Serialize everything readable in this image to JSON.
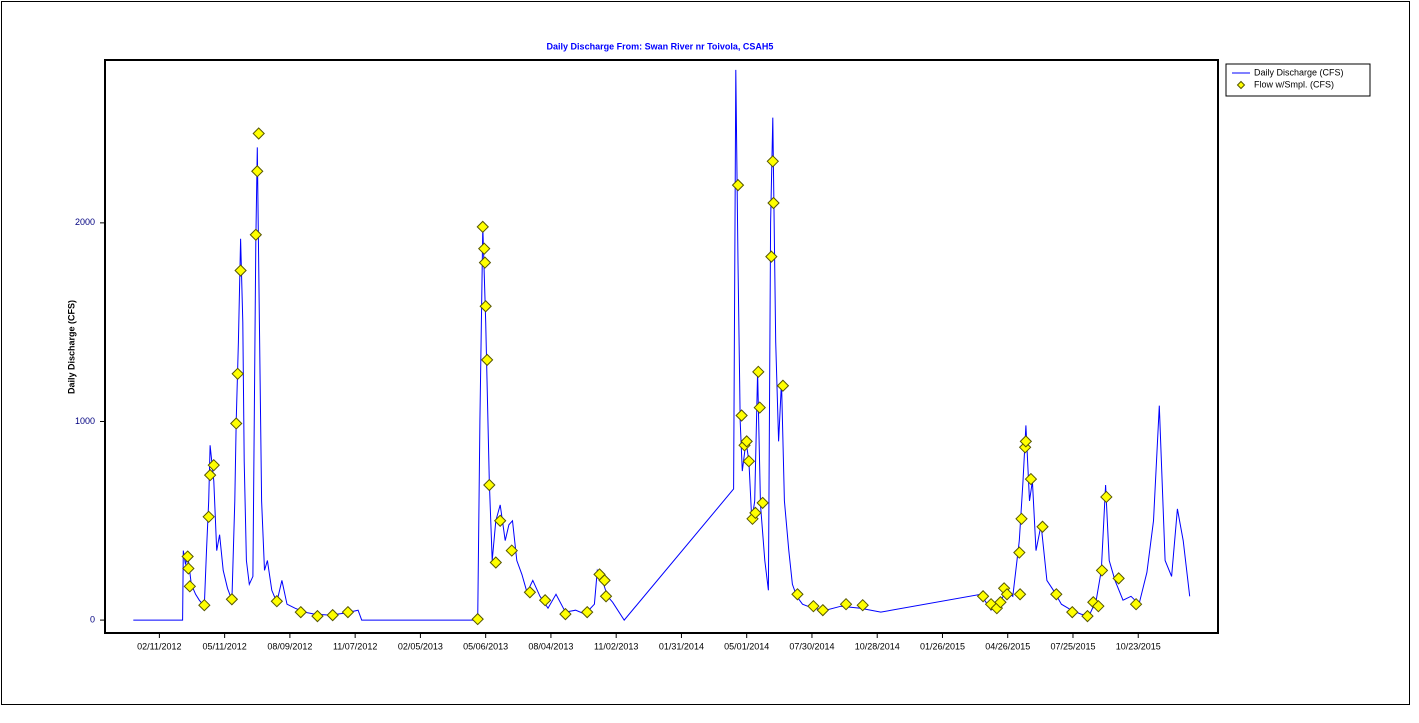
{
  "chart_data": {
    "type": "line",
    "title": "Daily Discharge From: Swan River nr Toivola, CSAH5",
    "y_label": "Daily Discharge (CFS)",
    "xlim": [
      "11/28/2011",
      "02/10/2016"
    ],
    "xticks": [
      "02/11/2012",
      "05/11/2012",
      "08/09/2012",
      "11/07/2012",
      "02/05/2013",
      "05/06/2013",
      "08/04/2013",
      "11/02/2013",
      "01/31/2014",
      "05/01/2014",
      "07/30/2014",
      "10/28/2014",
      "01/26/2015",
      "04/26/2015",
      "07/25/2015",
      "10/23/2015"
    ],
    "ylim": [
      -65,
      2820
    ],
    "yticks": [
      0,
      1000,
      2000
    ],
    "legend": "outside-right-top",
    "series": [
      {
        "name": "Daily Discharge (CFS)",
        "type": "line",
        "color": "#0000ff",
        "x": [
          "01/06/2012",
          "03/14/2012",
          "03/15/2012",
          "03/18/2012",
          "03/21/2012",
          "03/26/2012",
          "04/01/2012",
          "04/06/2012",
          "04/13/2012",
          "04/16/2012",
          "04/19/2012",
          "04/21/2012",
          "04/26/2012",
          "04/30/2012",
          "05/04/2012",
          "05/09/2012",
          "05/15/2012",
          "05/21/2012",
          "05/25/2012",
          "05/27/2012",
          "05/30/2012",
          "06/02/2012",
          "06/05/2012",
          "06/07/2012",
          "06/10/2012",
          "06/14/2012",
          "06/19/2012",
          "06/23/2012",
          "06/25/2012",
          "06/28/2012",
          "07/01/2012",
          "07/05/2012",
          "07/09/2012",
          "07/15/2012",
          "07/22/2012",
          "07/29/2012",
          "08/05/2012",
          "08/16/2012",
          "08/29/2012",
          "09/12/2012",
          "10/03/2012",
          "10/24/2012",
          "11/11/2012",
          "11/16/2012",
          "04/25/2013",
          "04/28/2013",
          "05/02/2013",
          "05/06/2013",
          "05/11/2013",
          "05/15/2013",
          "05/20/2013",
          "05/26/2013",
          "06/02/2013",
          "06/07/2013",
          "06/12/2013",
          "06/18/2013",
          "06/25/2013",
          "07/02/2013",
          "07/10/2013",
          "07/20/2013",
          "07/31/2013",
          "08/11/2013",
          "08/24/2013",
          "09/07/2013",
          "09/20/2013",
          "10/03/2013",
          "10/07/2013",
          "10/14/2013",
          "10/21/2013",
          "10/28/2013",
          "11/13/2013",
          "04/13/2014",
          "04/16/2014",
          "04/19/2014",
          "04/22/2014",
          "04/25/2014",
          "04/30/2014",
          "05/04/2014",
          "05/08/2014",
          "05/12/2014",
          "05/16/2014",
          "05/20/2014",
          "05/26/2014",
          "05/31/2014",
          "06/03/2014",
          "06/06/2014",
          "06/10/2014",
          "06/14/2014",
          "06/18/2014",
          "06/22/2014",
          "06/28/2014",
          "07/03/2014",
          "07/09/2014",
          "07/17/2014",
          "07/31/2014",
          "08/18/2014",
          "09/08/2014",
          "10/05/2014",
          "11/02/2014",
          "03/20/2015",
          "04/03/2015",
          "04/14/2015",
          "04/24/2015",
          "05/03/2015",
          "05/12/2015",
          "05/17/2015",
          "05/21/2015",
          "05/26/2015",
          "05/30/2015",
          "06/04/2015",
          "06/11/2015",
          "06/19/2015",
          "06/28/2015",
          "07/09/2015",
          "07/23/2015",
          "08/05/2015",
          "08/16/2015",
          "08/26/2015",
          "09/02/2015",
          "09/08/2015",
          "09/13/2015",
          "09/21/2015",
          "10/02/2015",
          "10/13/2015",
          "10/24/2015",
          "11/04/2015",
          "11/13/2015",
          "11/21/2015",
          "11/29/2015",
          "12/08/2015",
          "12/16/2015",
          "12/24/2015",
          "01/02/2016"
        ],
        "values": [
          0,
          0,
          350,
          280,
          330,
          180,
          130,
          100,
          70,
          350,
          600,
          880,
          700,
          350,
          430,
          250,
          160,
          100,
          600,
          1000,
          1400,
          1920,
          1500,
          800,
          300,
          180,
          220,
          1900,
          2380,
          1500,
          600,
          250,
          300,
          150,
          90,
          200,
          80,
          60,
          40,
          30,
          25,
          35,
          50,
          0,
          0,
          1000,
          1980,
          1500,
          700,
          300,
          500,
          580,
          400,
          480,
          500,
          300,
          230,
          140,
          200,
          120,
          60,
          130,
          40,
          50,
          30,
          80,
          250,
          200,
          120,
          90,
          0,
          660,
          2770,
          1800,
          1000,
          750,
          900,
          800,
          500,
          600,
          1250,
          580,
          300,
          150,
          2000,
          2530,
          1400,
          900,
          1200,
          600,
          350,
          180,
          120,
          80,
          60,
          50,
          70,
          60,
          40,
          130,
          50,
          80,
          150,
          120,
          400,
          700,
          980,
          600,
          700,
          350,
          480,
          200,
          150,
          80,
          50,
          30,
          20,
          100,
          250,
          680,
          300,
          200,
          100,
          120,
          80,
          240,
          500,
          1080,
          300,
          220,
          560,
          400,
          120
        ]
      },
      {
        "name": "Flow w/Smpl. (CFS)",
        "type": "scatter",
        "color": "#ffff00",
        "x": [
          "03/21/2012",
          "03/22/2012",
          "03/24/2012",
          "04/13/2012",
          "04/19/2012",
          "04/21/2012",
          "04/26/2012",
          "05/21/2012",
          "05/27/2012",
          "05/29/2012",
          "06/02/2012",
          "06/23/2012",
          "06/25/2012",
          "06/27/2012",
          "07/22/2012",
          "08/24/2012",
          "09/16/2012",
          "10/07/2012",
          "10/28/2012",
          "04/25/2013",
          "05/02/2013",
          "05/04/2013",
          "05/05/2013",
          "05/06/2013",
          "05/08/2013",
          "05/11/2013",
          "05/20/2013",
          "05/26/2013",
          "06/11/2013",
          "07/06/2013",
          "07/27/2013",
          "08/24/2013",
          "09/23/2013",
          "10/10/2013",
          "10/17/2013",
          "10/19/2013",
          "04/19/2014",
          "04/24/2014",
          "04/28/2014",
          "05/01/2014",
          "05/04/2014",
          "05/09/2014",
          "05/13/2014",
          "05/17/2014",
          "05/19/2014",
          "05/23/2014",
          "06/04/2014",
          "06/06/2014",
          "06/07/2014",
          "06/20/2014",
          "07/10/2014",
          "08/01/2014",
          "08/14/2014",
          "09/15/2014",
          "10/08/2014",
          "03/23/2015",
          "04/03/2015",
          "04/11/2015",
          "04/16/2015",
          "04/21/2015",
          "04/25/2015",
          "05/12/2015",
          "05/13/2015",
          "05/15/2015",
          "05/20/2015",
          "05/21/2015",
          "05/28/2015",
          "06/13/2015",
          "07/02/2015",
          "07/24/2015",
          "08/14/2015",
          "08/22/2015",
          "08/29/2015",
          "09/03/2015",
          "09/09/2015",
          "09/26/2015",
          "10/20/2015"
        ],
        "values": [
          320,
          260,
          170,
          75,
          520,
          730,
          780,
          105,
          990,
          1240,
          1760,
          1940,
          2260,
          2450,
          95,
          40,
          20,
          25,
          40,
          5,
          1980,
          1870,
          1800,
          1580,
          1310,
          680,
          290,
          500,
          350,
          140,
          100,
          30,
          40,
          230,
          200,
          120,
          2190,
          1030,
          880,
          900,
          800,
          510,
          540,
          1250,
          1070,
          590,
          1830,
          2310,
          2100,
          1180,
          130,
          70,
          50,
          80,
          75,
          120,
          80,
          60,
          90,
          160,
          130,
          340,
          130,
          510,
          870,
          900,
          710,
          470,
          130,
          40,
          20,
          90,
          70,
          250,
          620,
          210,
          80
        ]
      }
    ]
  }
}
